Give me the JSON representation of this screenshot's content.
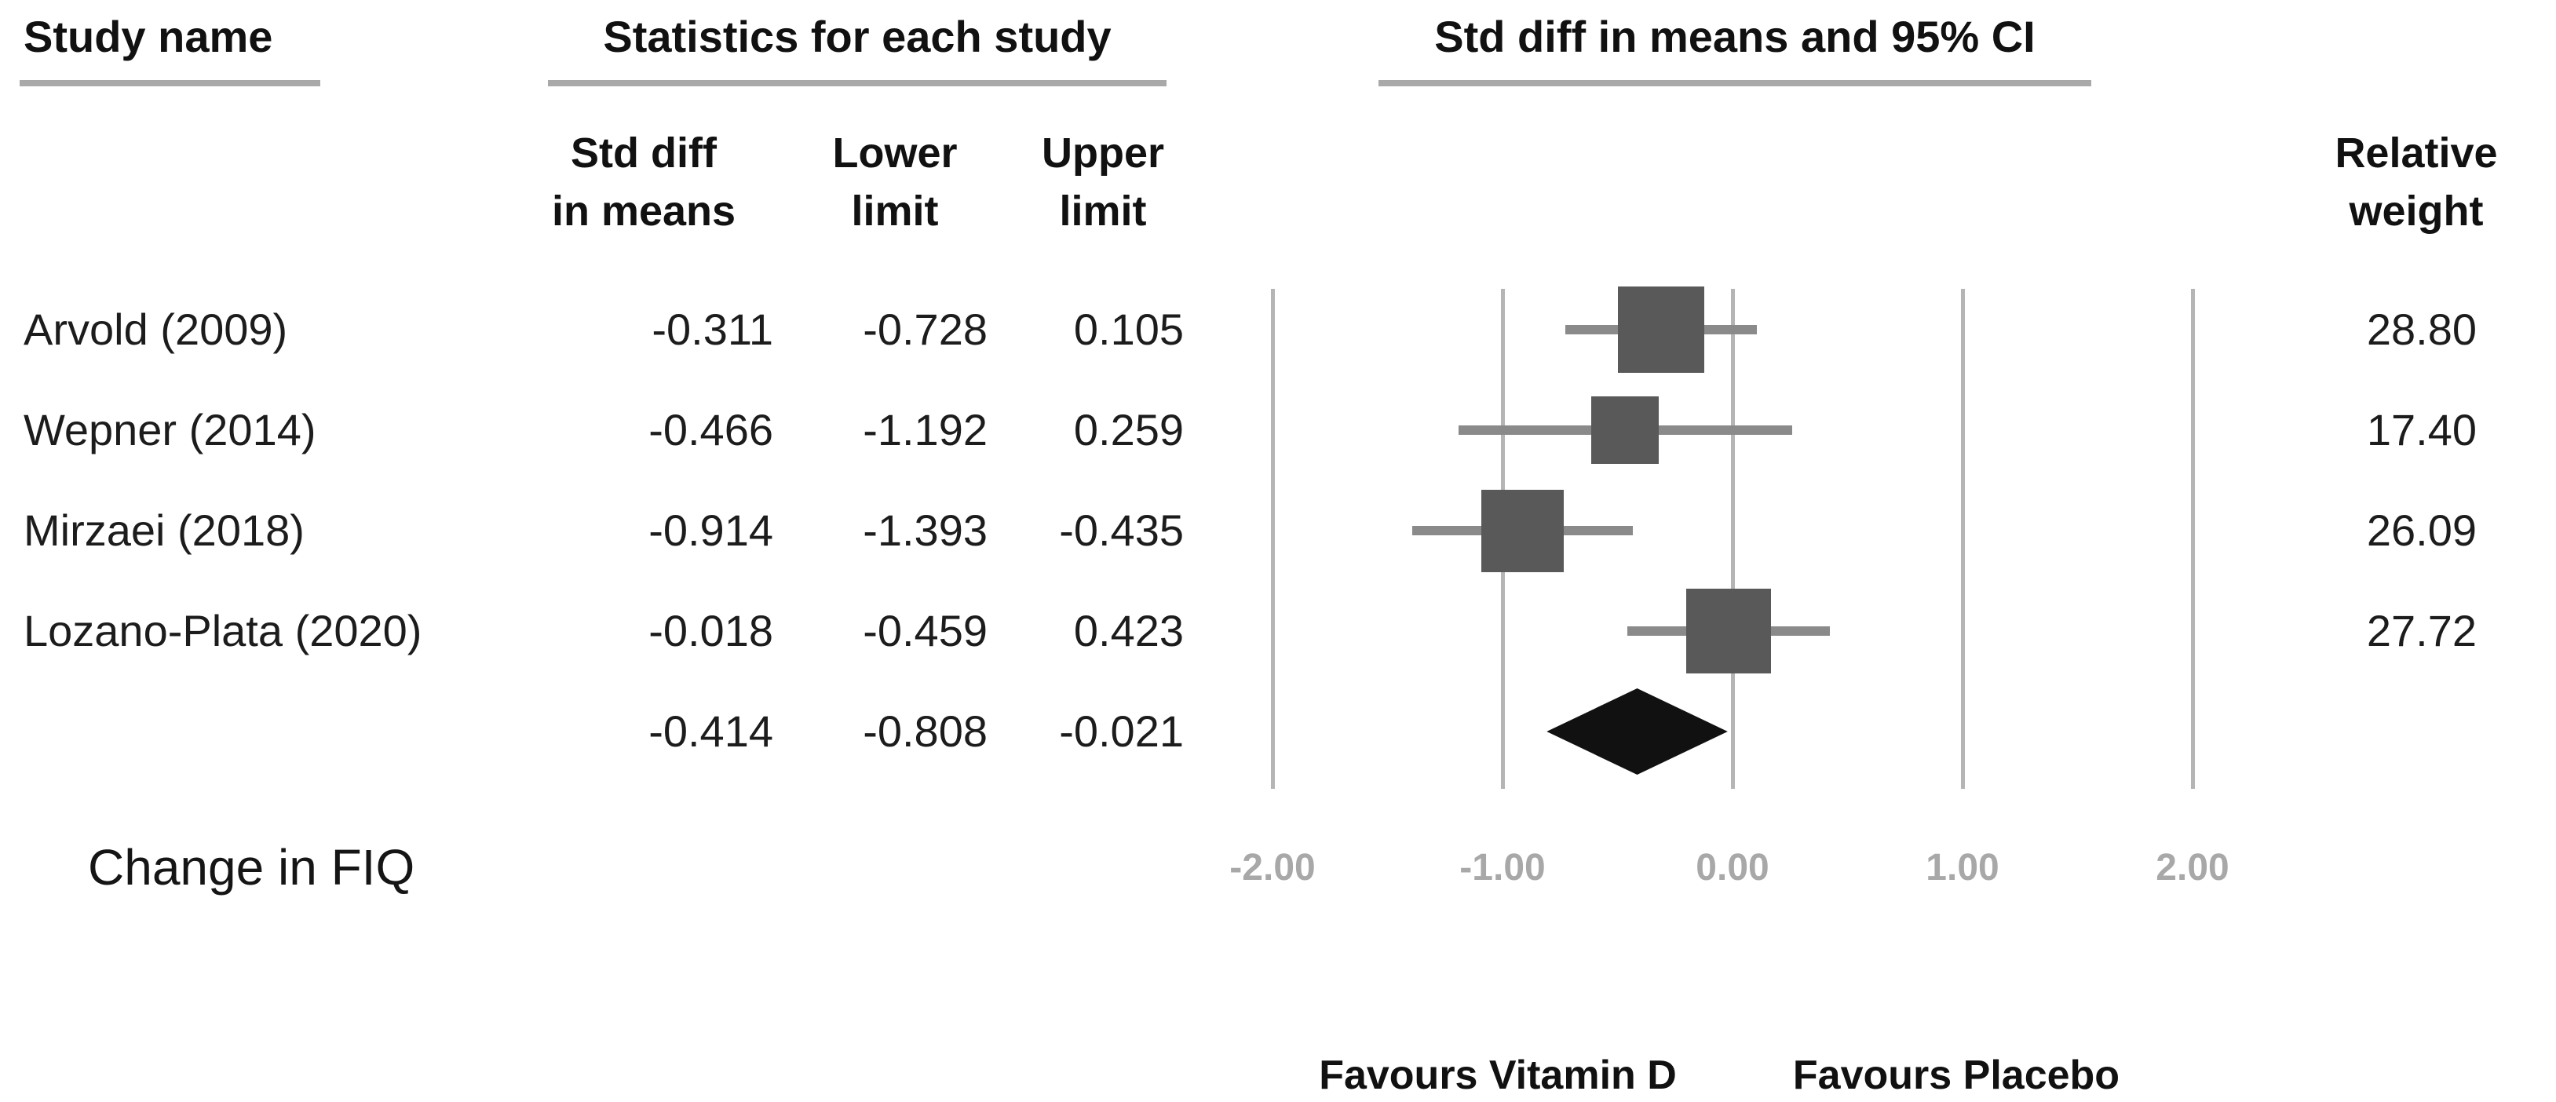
{
  "headers": {
    "study_name": "Study name",
    "statistics": "Statistics for each study",
    "ci": "Std diff in means and 95% CI"
  },
  "columns": {
    "std_diff": [
      "Std diff",
      "in means"
    ],
    "lower": [
      "Lower",
      "limit"
    ],
    "upper": [
      "Upper",
      "limit"
    ],
    "relative": [
      "Relative",
      "weight"
    ]
  },
  "chart_data": {
    "type": "forest",
    "outcome": "Change in FIQ",
    "x_axis": {
      "tick_values": [
        -2,
        -1,
        0,
        1,
        2
      ],
      "tick_labels": [
        "-2.00",
        "-1.00",
        "0.00",
        "1.00",
        "2.00"
      ],
      "xlim": [
        -2,
        2
      ],
      "grid": "vertical-lines"
    },
    "studies": [
      {
        "name": "Arvold (2009)",
        "std_diff": -0.311,
        "lower": -0.728,
        "upper": 0.105,
        "relative_weight": 28.8
      },
      {
        "name": "Wepner (2014)",
        "std_diff": -0.466,
        "lower": -1.192,
        "upper": 0.259,
        "relative_weight": 17.4
      },
      {
        "name": "Mirzaei (2018)",
        "std_diff": -0.914,
        "lower": -1.393,
        "upper": -0.435,
        "relative_weight": 26.09
      },
      {
        "name": "Lozano-Plata (2020)",
        "std_diff": -0.018,
        "lower": -0.459,
        "upper": 0.423,
        "relative_weight": 27.72
      }
    ],
    "overall": {
      "std_diff": -0.414,
      "lower": -0.808,
      "upper": -0.021
    }
  },
  "footer": {
    "outcome_label": "Change in FIQ",
    "favours_left": "Favours Vitamin D",
    "favours_right": "Favours Placebo"
  },
  "colors": {
    "square": "#595959",
    "ci_line": "#8a8a8a",
    "diamond": "#111111",
    "gridline": "#b5b5b5",
    "tick_label": "#a8a8a8",
    "underline": "#a9a9a9",
    "text": "#1c1c1c"
  }
}
